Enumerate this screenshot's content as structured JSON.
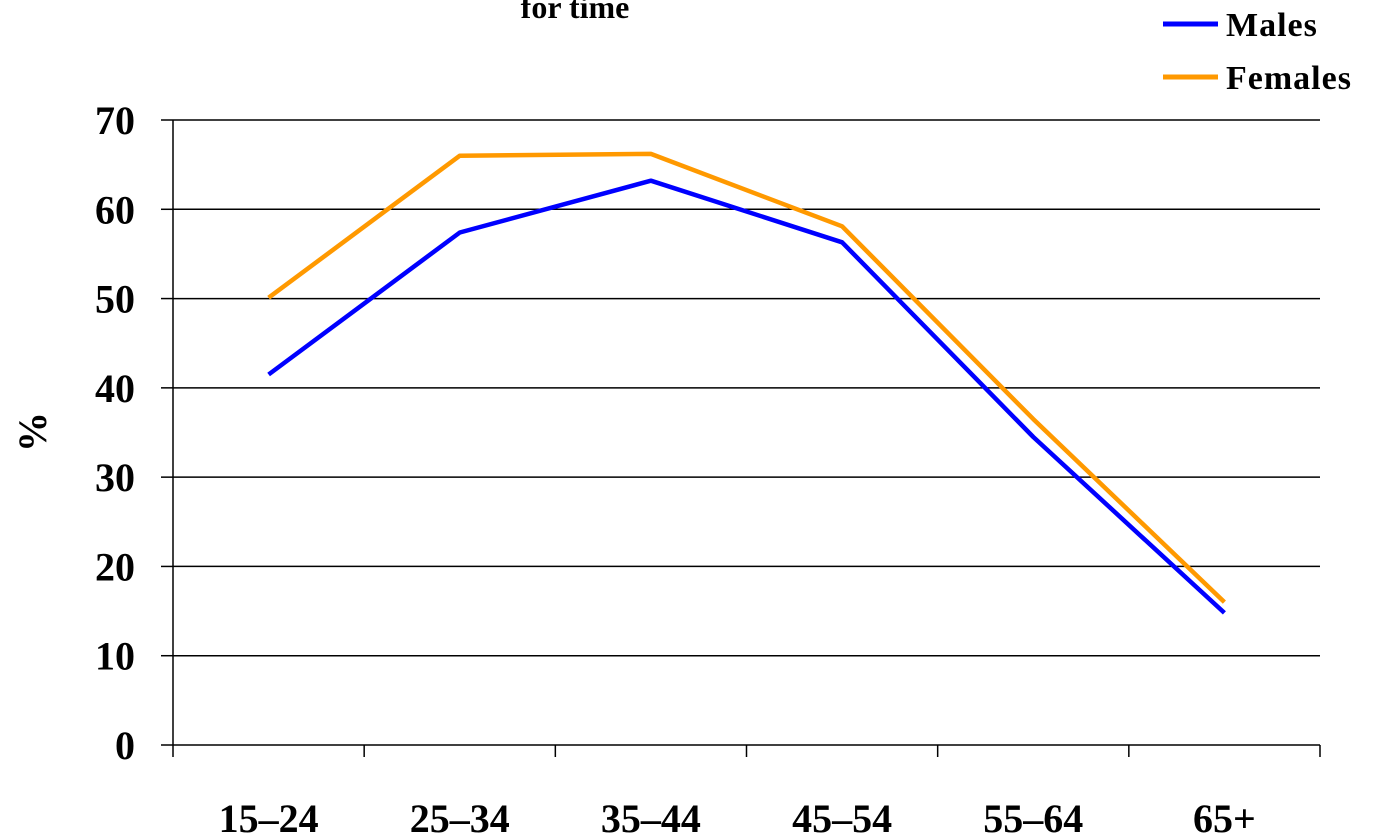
{
  "chart_data": {
    "type": "line",
    "title": "for time",
    "xlabel": "",
    "ylabel": "%",
    "categories": [
      "15–24",
      "25–34",
      "35–44",
      "45–54",
      "55–64",
      "65+"
    ],
    "ylim": [
      0,
      70
    ],
    "yticks": [
      0,
      10,
      20,
      30,
      40,
      50,
      60,
      70
    ],
    "grid": true,
    "legend_position": "top-right",
    "series": [
      {
        "name": "Males",
        "color": "#0000ff",
        "values": [
          41.5,
          57.4,
          63.2,
          56.3,
          34.5,
          14.8
        ]
      },
      {
        "name": "Females",
        "color": "#ff9900",
        "values": [
          50.1,
          66.0,
          66.2,
          58.1,
          36.5,
          16.0
        ]
      }
    ]
  }
}
